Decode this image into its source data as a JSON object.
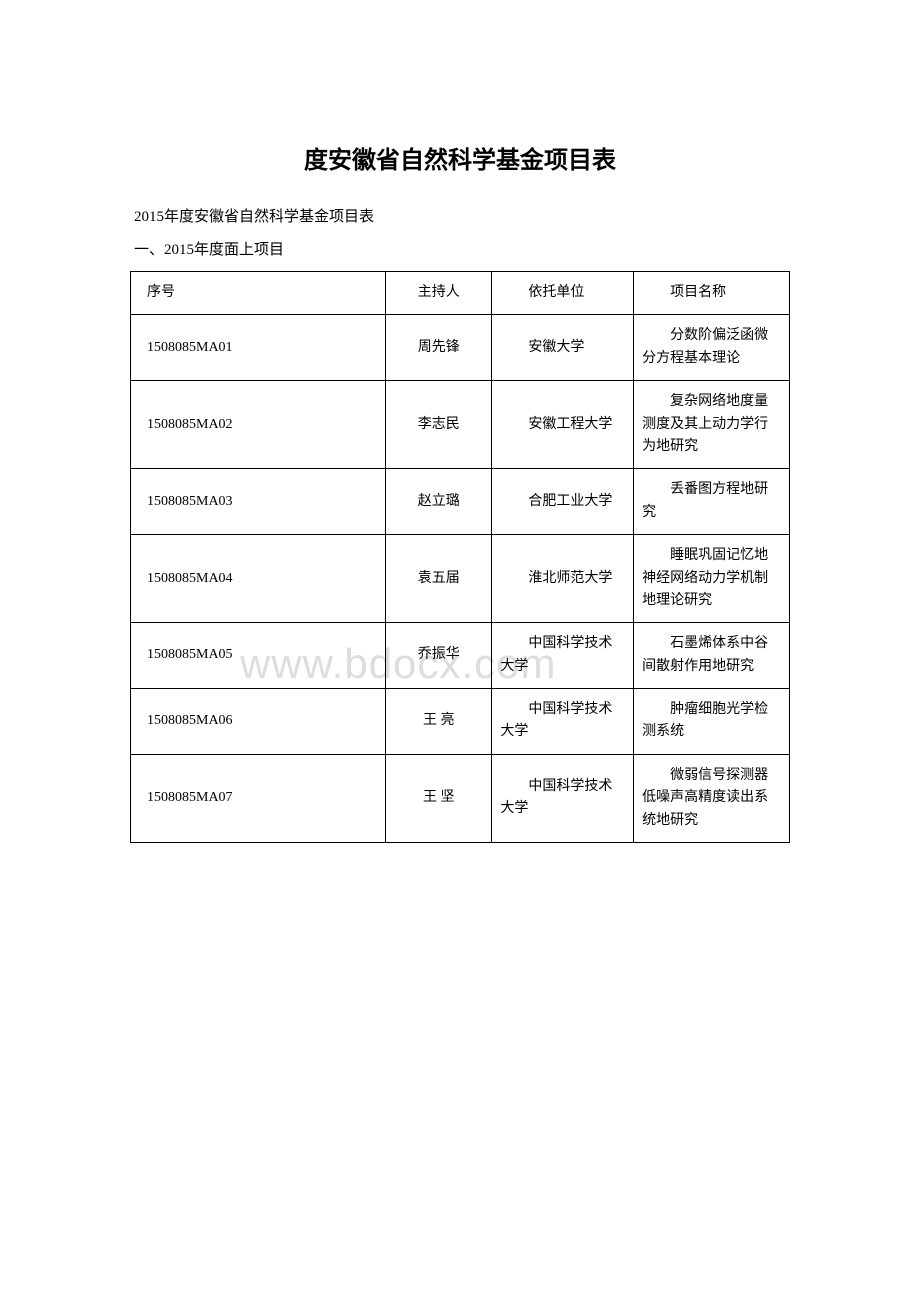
{
  "title": "度安徽省自然科学基金项目表",
  "subtitle": "2015年度安徽省自然科学基金项目表",
  "section_header": "一、2015年度面上项目",
  "watermark": "www.bdocx.com",
  "table": {
    "columns": [
      "序号",
      "主持人",
      "依托单位",
      "项目名称"
    ],
    "rows": [
      {
        "id": "1508085MA01",
        "host": "周先锋",
        "institution": "安徽大学",
        "project": "分数阶偏泛函微分方程基本理论"
      },
      {
        "id": "1508085MA02",
        "host": "李志民",
        "institution": "安徽工程大学",
        "project": "复杂网络地度量测度及其上动力学行为地研究"
      },
      {
        "id": "1508085MA03",
        "host": "赵立璐",
        "institution": "合肥工业大学",
        "project": "丢番图方程地研究"
      },
      {
        "id": "1508085MA04",
        "host": "袁五届",
        "institution": "淮北师范大学",
        "project": "睡眠巩固记忆地神经网络动力学机制地理论研究"
      },
      {
        "id": "1508085MA05",
        "host": "乔振华",
        "institution": "中国科学技术大学",
        "project": "石墨烯体系中谷间散射作用地研究"
      },
      {
        "id": "1508085MA06",
        "host": "王 亮",
        "institution": "中国科学技术大学",
        "project": "肿瘤细胞光学检测系统"
      },
      {
        "id": "1508085MA07",
        "host": "王 坚",
        "institution": "中国科学技术大学",
        "project": "微弱信号探测器低噪声高精度读出系统地研究"
      }
    ]
  }
}
